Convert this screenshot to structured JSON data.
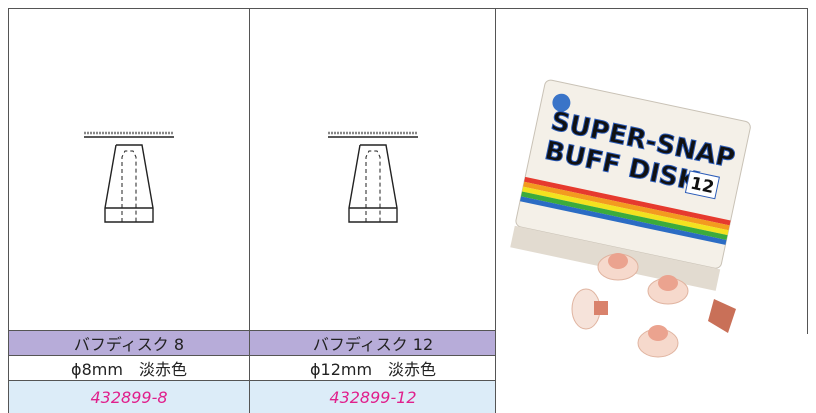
{
  "products": [
    {
      "name": "バフディスク 8",
      "spec": "ϕ8mm　淡赤色",
      "code": "432899-8"
    },
    {
      "name": "バフディスク 12",
      "spec": "ϕ12mm　淡赤色",
      "code": "432899-12"
    }
  ],
  "photo": {
    "box_text": [
      "SUPER-SNAP",
      "BUFF DISK",
      "12"
    ]
  }
}
